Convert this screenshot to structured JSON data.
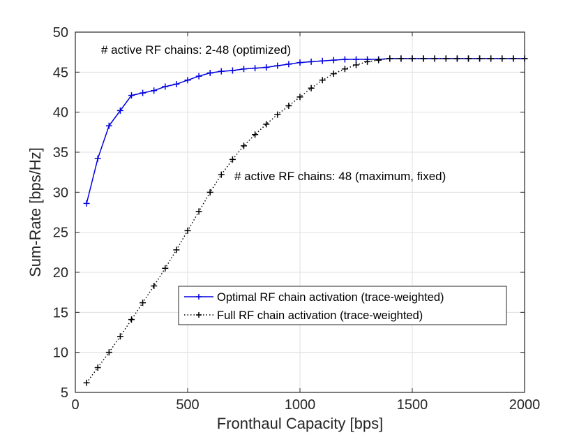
{
  "chart_data": {
    "type": "line",
    "title": "",
    "xlabel": "Fronthaul Capacity [bps]",
    "ylabel": "Sum-Rate [bps/Hz]",
    "xlim": [
      0,
      2000
    ],
    "ylim": [
      5,
      50
    ],
    "xticks": [
      "0",
      "500",
      "1000",
      "1500",
      "2000"
    ],
    "yticks": [
      "5",
      "10",
      "15",
      "20",
      "25",
      "30",
      "35",
      "40",
      "45",
      "50"
    ],
    "grid": true,
    "legend_position": "lower-right",
    "annotations": {
      "optimized": "# active RF chains: 2-48 (optimized)",
      "fixed": "# active RF chains: 48 (maximum, fixed)"
    },
    "series": [
      {
        "name": "Optimal RF chain activation (trace-weighted)",
        "color": "#0000dd",
        "line_style": "solid",
        "marker": "+",
        "x": [
          50,
          100,
          150,
          200,
          250,
          300,
          350,
          400,
          450,
          500,
          550,
          600,
          650,
          700,
          750,
          800,
          850,
          900,
          950,
          1000,
          1050,
          1100,
          1150,
          1200,
          1250,
          1300,
          1350,
          1400,
          1450,
          1500,
          1550,
          1600,
          1650,
          1700,
          1750,
          1800,
          1850,
          1900,
          1950,
          2000
        ],
        "values": [
          28.6,
          34.2,
          38.3,
          40.2,
          42.1,
          42.4,
          42.7,
          43.2,
          43.5,
          44.0,
          44.5,
          44.9,
          45.1,
          45.2,
          45.4,
          45.5,
          45.6,
          45.8,
          46.0,
          46.2,
          46.3,
          46.4,
          46.5,
          46.6,
          46.6,
          46.6,
          46.6,
          46.7,
          46.7,
          46.7,
          46.7,
          46.7,
          46.7,
          46.7,
          46.7,
          46.7,
          46.7,
          46.7,
          46.7,
          46.7
        ]
      },
      {
        "name": "Full RF chain activation (trace-weighted)",
        "color": "#000000",
        "line_style": "dotted",
        "marker": "+",
        "x": [
          50,
          100,
          150,
          200,
          250,
          300,
          350,
          400,
          450,
          500,
          550,
          600,
          650,
          700,
          750,
          800,
          850,
          900,
          950,
          1000,
          1050,
          1100,
          1150,
          1200,
          1250,
          1300,
          1350,
          1400,
          1450,
          1500,
          1550,
          1600,
          1650,
          1700,
          1750,
          1800,
          1850,
          1900,
          1950,
          2000
        ],
        "values": [
          6.2,
          8.1,
          10.0,
          12.0,
          14.1,
          16.2,
          18.3,
          20.5,
          22.8,
          25.2,
          27.6,
          30.0,
          32.2,
          34.1,
          35.8,
          37.2,
          38.5,
          39.7,
          40.8,
          41.9,
          43.0,
          44.0,
          44.8,
          45.4,
          45.9,
          46.3,
          46.5,
          46.7,
          46.7,
          46.7,
          46.7,
          46.7,
          46.7,
          46.7,
          46.7,
          46.7,
          46.7,
          46.7,
          46.7,
          46.7
        ]
      }
    ]
  }
}
